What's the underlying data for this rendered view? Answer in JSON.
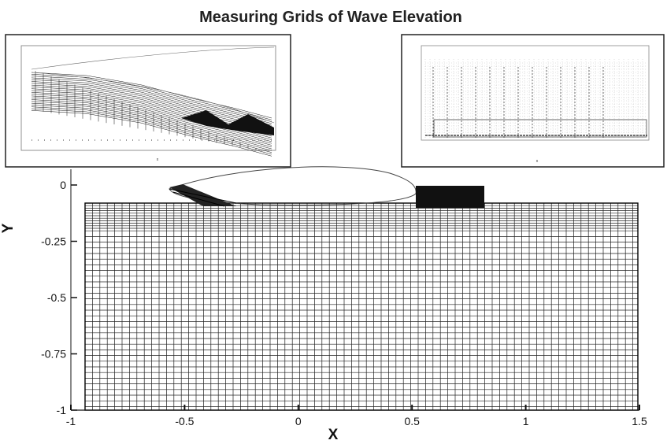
{
  "title": "Measuring Grids of Wave Elevation",
  "axes": {
    "xlabel": "X",
    "ylabel": "Y",
    "xlim": [
      -1,
      1.5
    ],
    "ylim": [
      -1,
      0.05
    ],
    "xticks": [
      -1,
      -0.5,
      0,
      0.5,
      1,
      1.5
    ],
    "xtick_labels": [
      "-1",
      "-0.5",
      "0",
      "0.5",
      "1",
      "1.5"
    ],
    "yticks": [
      0,
      -0.25,
      -0.5,
      -0.75,
      -1
    ],
    "ytick_labels": [
      "0",
      "-0.25",
      "-0.5",
      "-0.75",
      "-1"
    ]
  },
  "insets": [
    {
      "id": "left",
      "axis_label": "x"
    },
    {
      "id": "right",
      "axis_label": "x"
    }
  ],
  "colors": {
    "ink": "#111111",
    "grid": "#222222",
    "hull": "#444444"
  }
}
